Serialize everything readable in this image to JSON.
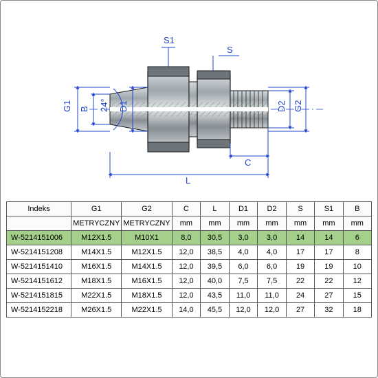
{
  "diagram": {
    "labels": {
      "S1": "S1",
      "S": "S",
      "G1": "G1",
      "B": "B",
      "angle": "24°",
      "D1": "D1",
      "D2": "D2",
      "G2": "G2",
      "C": "C",
      "L": "L"
    },
    "colors": {
      "line": "#2244cc",
      "part_fill": "#aeb7bb",
      "part_stroke": "#1a1a1a",
      "part_dark": "#555c60",
      "hatch": "#888"
    }
  },
  "table": {
    "headers": [
      "Indeks",
      "G1",
      "G2",
      "C",
      "L",
      "D1",
      "D2",
      "S",
      "S1",
      "B"
    ],
    "unit_row": [
      "",
      "METRYCZNY",
      "METRYCZNY",
      "mm",
      "mm",
      "mm",
      "mm",
      "mm",
      "mm",
      "mm"
    ],
    "rows": [
      [
        "W-5214151006",
        "M12X1.5",
        "M10X1",
        "8,0",
        "30,5",
        "3,0",
        "3,0",
        "14",
        "14",
        "6"
      ],
      [
        "W-5214151208",
        "M14X1.5",
        "M12X1.5",
        "12,0",
        "38,5",
        "4,0",
        "4,0",
        "17",
        "17",
        "8"
      ],
      [
        "W-5214151410",
        "M16X1.5",
        "M14X1.5",
        "12,0",
        "39,5",
        "6,0",
        "6,0",
        "19",
        "19",
        "10"
      ],
      [
        "W-5214151612",
        "M18X1.5",
        "M16X1.5",
        "12,0",
        "40,0",
        "7,5",
        "7,5",
        "22",
        "22",
        "12"
      ],
      [
        "W-5214151815",
        "M22X1.5",
        "M18X1.5",
        "12,0",
        "43,5",
        "11,0",
        "11,0",
        "24",
        "27",
        "15"
      ],
      [
        "W-5214152218",
        "M26X1.5",
        "M22X1.5",
        "14,0",
        "45,5",
        "12,0",
        "12,0",
        "27",
        "32",
        "18"
      ]
    ],
    "highlight_row": 0,
    "col_widths_pct": [
      18,
      12,
      12,
      8,
      8,
      8,
      8,
      8,
      8,
      8
    ]
  }
}
